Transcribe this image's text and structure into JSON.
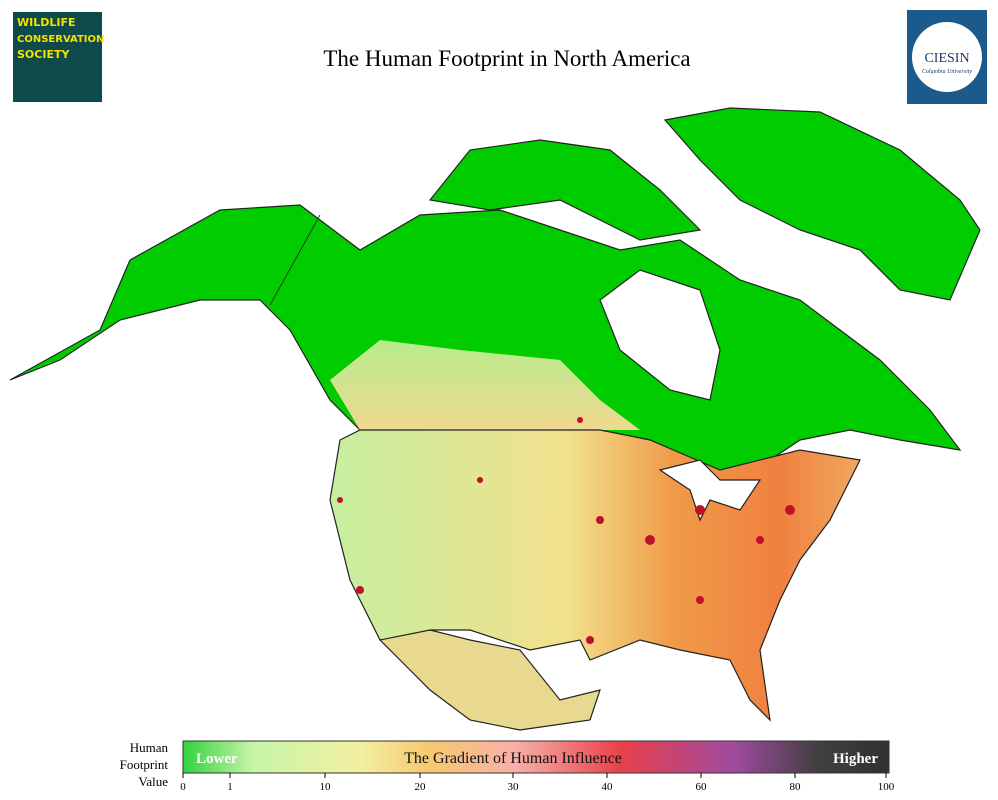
{
  "title": "The Human Footprint in North America",
  "logos": {
    "left": [
      "WILDLIFE",
      "CONSERVATION",
      "SOCIETY"
    ],
    "right": {
      "name": "CIESIN",
      "sub": "Columbia University"
    }
  },
  "legend": {
    "label": [
      "Human",
      "Footprint",
      "Value"
    ],
    "lower": "Lower",
    "caption": "The Gradient of Human Influence",
    "higher": "Higher",
    "ticks": [
      0,
      1,
      10,
      20,
      30,
      40,
      60,
      80,
      100
    ]
  }
}
